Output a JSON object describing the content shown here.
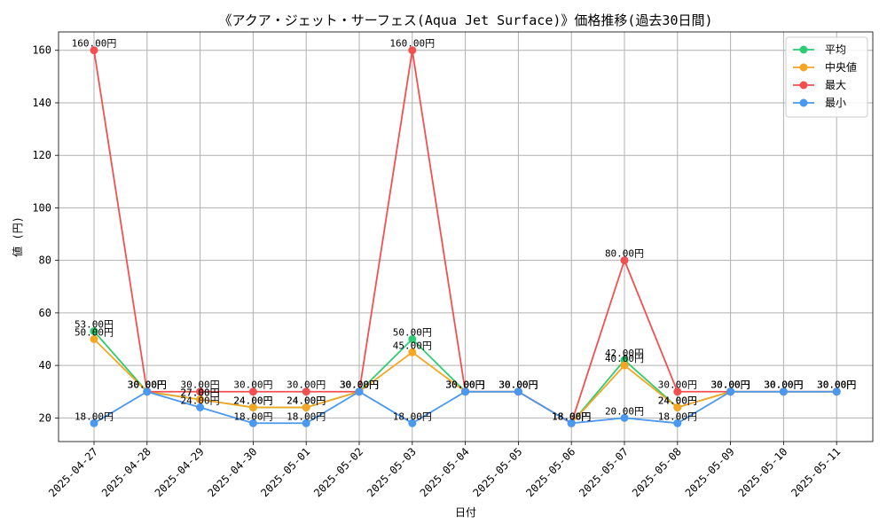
{
  "chart_data": {
    "type": "line",
    "title": "《アクア・ジェット・サーフェス(Aqua Jet Surface)》価格推移(過去30日間)",
    "xlabel": "日付",
    "ylabel": "値 (円)",
    "ylim": [
      11,
      167
    ],
    "yticks": [
      20,
      40,
      60,
      80,
      100,
      120,
      140,
      160
    ],
    "grid": true,
    "legend_position": "top-right",
    "value_suffix": "円",
    "categories": [
      "2025-04-27",
      "2025-04-28",
      "2025-04-29",
      "2025-04-30",
      "2025-05-01",
      "2025-05-02",
      "2025-05-03",
      "2025-05-04",
      "2025-05-05",
      "2025-05-06",
      "2025-05-07",
      "2025-05-08",
      "2025-05-09",
      "2025-05-10",
      "2025-05-11"
    ],
    "series": [
      {
        "name": "平均",
        "color": "#2ecc71",
        "values": [
          53,
          30,
          27,
          24,
          24,
          30,
          50,
          30,
          30,
          18,
          42,
          24,
          30,
          30,
          30
        ]
      },
      {
        "name": "中央値",
        "color": "#f5a623",
        "values": [
          50,
          30,
          27,
          24,
          24,
          30,
          45,
          30,
          30,
          18,
          40,
          24,
          30,
          30,
          30
        ]
      },
      {
        "name": "最大",
        "color": "#f25050",
        "values": [
          160,
          30,
          30,
          30,
          30,
          30,
          160,
          30,
          30,
          18,
          80,
          30,
          30,
          30,
          30
        ]
      },
      {
        "name": "最小",
        "color": "#4a98f0",
        "values": [
          18,
          30,
          24,
          18,
          18,
          30,
          18,
          30,
          30,
          18,
          20,
          18,
          30,
          30,
          30
        ]
      }
    ]
  }
}
